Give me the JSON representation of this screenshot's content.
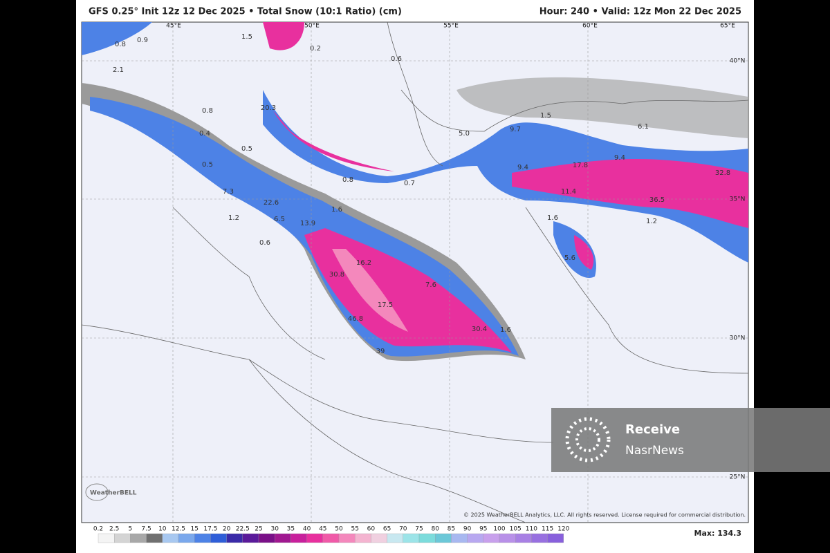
{
  "header": {
    "title": "GFS 0.25° Init 12z 12 Dec 2025 • Total Snow (10:1 Ratio) (cm)",
    "valid": "Hour: 240 • Valid: 12z Mon 22 Dec 2025"
  },
  "graticule": {
    "lon": [
      "45°E",
      "50°E",
      "55°E",
      "60°E",
      "65°E"
    ],
    "lat": [
      "40°N",
      "35°N",
      "30°N",
      "25°N"
    ]
  },
  "map_labels": [
    "0.8",
    "0.9",
    "2.1",
    "1.5",
    "0.2",
    "0.6",
    "0.8",
    "0.4",
    "20.3",
    "0.5",
    "0.5",
    "7.3",
    "22.6",
    "1.2",
    "6.5",
    "13.9",
    "1.6",
    "0.6",
    "0.8",
    "0.7",
    "5.0",
    "9.7",
    "1.5",
    "6.1",
    "9.4",
    "17.8",
    "9.4",
    "32.8",
    "11.4",
    "36.5",
    "1.6",
    "1.2",
    "16.2",
    "30.8",
    "7.6",
    "17.5",
    "46.8",
    "39",
    "30.4",
    "1.6",
    "5.6"
  ],
  "copyright": "© 2025 WeatherBELL Analytics, LLC. All rights reserved. License required for commercial distribution.",
  "logo": "WeatherBELL",
  "colorbar": {
    "ticks": [
      0.2,
      2.5,
      5,
      7.5,
      10,
      12.5,
      15,
      17.5,
      20,
      22.5,
      25,
      30,
      35,
      40,
      45,
      50,
      55,
      60,
      65,
      70,
      75,
      80,
      85,
      90,
      95,
      100,
      105,
      110,
      115,
      120
    ],
    "colors": [
      "#f4f4f4",
      "#d4d4d4",
      "#a8a8a8",
      "#707070",
      "#a8c8f0",
      "#7aa8ec",
      "#4d82e6",
      "#2f5ed8",
      "#3a2aa8",
      "#5a1a9a",
      "#7a1088",
      "#a01890",
      "#c8209c",
      "#e8309e",
      "#f05aa8",
      "#f488bc",
      "#f4b4d0",
      "#f0d0e0",
      "#c8e8f0",
      "#9ce4e8",
      "#7cdcdc",
      "#6cc8d8",
      "#a8b8f0",
      "#b8a8f0",
      "#c8a0ec",
      "#b890e8",
      "#a880e4",
      "#9870e0",
      "#8860dc"
    ],
    "max": "Max: 134.3"
  },
  "watermark": {
    "line1": "Receive",
    "line2": "NasrNews"
  }
}
